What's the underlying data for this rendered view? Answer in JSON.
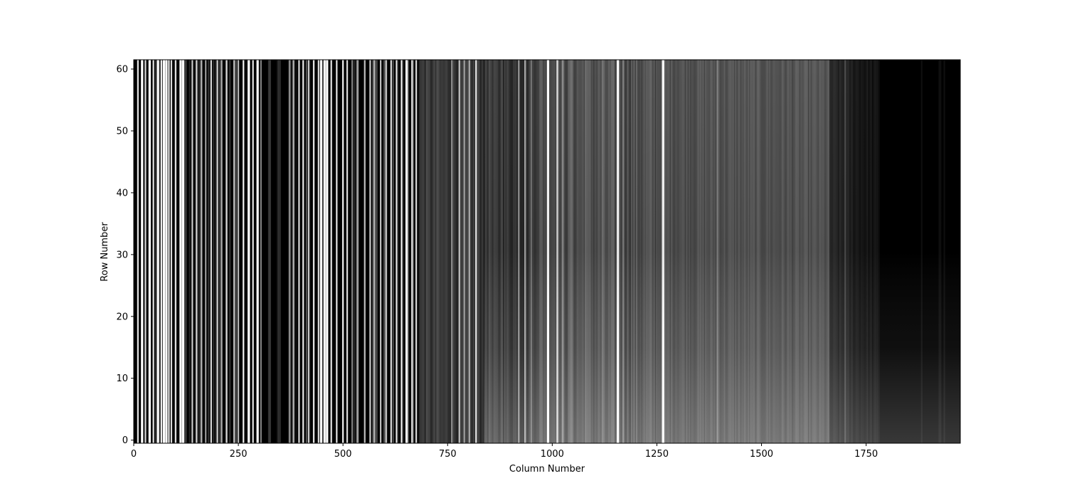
{
  "chart_data": {
    "type": "heatmap",
    "title": "",
    "xlabel": "Column Number",
    "ylabel": "Row Number",
    "xlim": [
      0,
      1975
    ],
    "ylim": [
      -0.5,
      61.5
    ],
    "colormap": "gray",
    "colors": {
      "background": "#ffffff",
      "low": "#000000",
      "high": "#ffffff",
      "axis": "#000000"
    },
    "grid": false,
    "x_ticks": [
      0,
      250,
      500,
      750,
      1000,
      1250,
      1500,
      1750
    ],
    "x_tick_labels": [
      "0",
      "250",
      "500",
      "750",
      "1000",
      "1250",
      "1500",
      "1750"
    ],
    "y_ticks": [
      0,
      10,
      20,
      30,
      40,
      50,
      60
    ],
    "y_tick_labels": [
      "0",
      "10",
      "20",
      "30",
      "40",
      "50",
      "60"
    ],
    "bright_lines": [
      {
        "column": 10,
        "intensity": 0.9
      },
      {
        "column": 20,
        "intensity": 1.0
      },
      {
        "column": 28,
        "intensity": 0.85
      },
      {
        "column": 38,
        "intensity": 1.0
      },
      {
        "column": 47,
        "intensity": 0.9
      },
      {
        "column": 58,
        "intensity": 1.0
      },
      {
        "column": 66,
        "intensity": 0.95
      },
      {
        "column": 72,
        "intensity": 1.0
      },
      {
        "column": 78,
        "intensity": 1.0
      },
      {
        "column": 84,
        "intensity": 0.9
      },
      {
        "column": 90,
        "intensity": 0.85
      },
      {
        "column": 100,
        "intensity": 0.9
      },
      {
        "column": 112,
        "intensity": 1.0
      },
      {
        "column": 118,
        "intensity": 1.0
      },
      {
        "column": 140,
        "intensity": 0.8
      },
      {
        "column": 150,
        "intensity": 0.8
      },
      {
        "column": 162,
        "intensity": 0.7
      },
      {
        "column": 172,
        "intensity": 0.6
      },
      {
        "column": 185,
        "intensity": 0.85
      },
      {
        "column": 200,
        "intensity": 0.8
      },
      {
        "column": 210,
        "intensity": 0.7
      },
      {
        "column": 222,
        "intensity": 0.85
      },
      {
        "column": 240,
        "intensity": 0.8
      },
      {
        "column": 250,
        "intensity": 0.7
      },
      {
        "column": 262,
        "intensity": 0.9
      },
      {
        "column": 275,
        "intensity": 1.0
      },
      {
        "column": 285,
        "intensity": 0.9
      },
      {
        "column": 296,
        "intensity": 1.0
      },
      {
        "column": 304,
        "intensity": 0.5
      },
      {
        "column": 350,
        "intensity": 0.15
      },
      {
        "column": 372,
        "intensity": 0.55
      },
      {
        "column": 382,
        "intensity": 0.7
      },
      {
        "column": 395,
        "intensity": 0.85
      },
      {
        "column": 405,
        "intensity": 0.9
      },
      {
        "column": 418,
        "intensity": 0.8
      },
      {
        "column": 430,
        "intensity": 0.9
      },
      {
        "column": 442,
        "intensity": 0.85
      },
      {
        "column": 448,
        "intensity": 1.0
      },
      {
        "column": 456,
        "intensity": 1.0
      },
      {
        "column": 462,
        "intensity": 1.0
      },
      {
        "column": 472,
        "intensity": 0.9
      },
      {
        "column": 485,
        "intensity": 0.9
      },
      {
        "column": 500,
        "intensity": 0.95
      },
      {
        "column": 510,
        "intensity": 0.85
      },
      {
        "column": 522,
        "intensity": 0.5
      },
      {
        "column": 535,
        "intensity": 0.65
      },
      {
        "column": 552,
        "intensity": 0.75
      },
      {
        "column": 565,
        "intensity": 0.8
      },
      {
        "column": 575,
        "intensity": 0.7
      },
      {
        "column": 590,
        "intensity": 0.75
      },
      {
        "column": 603,
        "intensity": 0.8
      },
      {
        "column": 615,
        "intensity": 0.85
      },
      {
        "column": 628,
        "intensity": 0.9
      },
      {
        "column": 640,
        "intensity": 0.95
      },
      {
        "column": 652,
        "intensity": 1.0
      },
      {
        "column": 665,
        "intensity": 0.9
      },
      {
        "column": 675,
        "intensity": 0.85
      },
      {
        "column": 700,
        "intensity": 0.3
      },
      {
        "column": 725,
        "intensity": 0.3
      },
      {
        "column": 760,
        "intensity": 0.55
      },
      {
        "column": 778,
        "intensity": 0.75
      },
      {
        "column": 790,
        "intensity": 0.6
      },
      {
        "column": 802,
        "intensity": 0.65
      },
      {
        "column": 818,
        "intensity": 0.9
      },
      {
        "column": 850,
        "intensity": 0.3
      },
      {
        "column": 880,
        "intensity": 0.3
      },
      {
        "column": 920,
        "intensity": 0.6
      },
      {
        "column": 935,
        "intensity": 0.65
      },
      {
        "column": 950,
        "intensity": 0.45
      },
      {
        "column": 990,
        "intensity": 1.0
      },
      {
        "column": 1012,
        "intensity": 0.9
      },
      {
        "column": 1025,
        "intensity": 0.55
      },
      {
        "column": 1045,
        "intensity": 0.45
      },
      {
        "column": 1080,
        "intensity": 0.45
      },
      {
        "column": 1120,
        "intensity": 0.45
      },
      {
        "column": 1157,
        "intensity": 1.0
      },
      {
        "column": 1170,
        "intensity": 0.5
      },
      {
        "column": 1265,
        "intensity": 1.0
      },
      {
        "column": 1395,
        "intensity": 0.5
      },
      {
        "column": 1700,
        "intensity": 0.3
      }
    ]
  }
}
